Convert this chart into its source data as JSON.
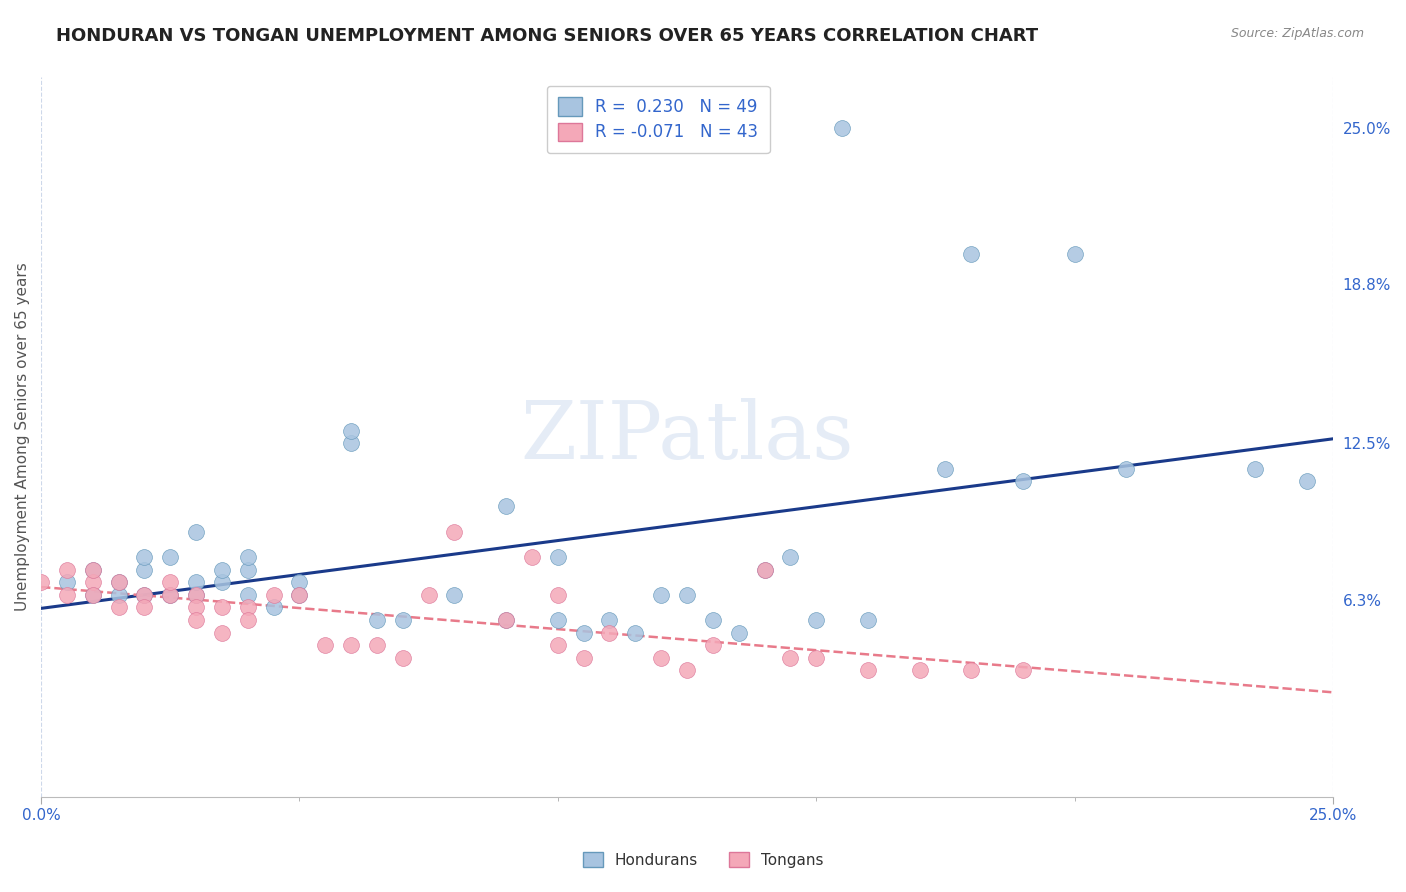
{
  "title": "HONDURAN VS TONGAN UNEMPLOYMENT AMONG SENIORS OVER 65 YEARS CORRELATION CHART",
  "source": "Source: ZipAtlas.com",
  "ylabel": "Unemployment Among Seniors over 65 years",
  "xlim": [
    0.0,
    0.25
  ],
  "ylim": [
    -0.015,
    0.27
  ],
  "ytick_right_labels": [
    "25.0%",
    "18.8%",
    "12.5%",
    "6.3%"
  ],
  "ytick_right_values": [
    0.25,
    0.188,
    0.125,
    0.063
  ],
  "honduran_color": "#a8c4e0",
  "tongan_color": "#f4a8b8",
  "honduran_edge_color": "#6699bb",
  "tongan_edge_color": "#dd7799",
  "honduran_line_color": "#1a3a8a",
  "tongan_line_color": "#e87a8a",
  "legend_honduran_label": "R =  0.230   N = 49",
  "legend_tongan_label": "R = -0.071   N = 43",
  "watermark": "ZIPatlas",
  "background_color": "#ffffff",
  "grid_color": "#c8d4e8",
  "honduran_scatter_x": [
    0.005,
    0.01,
    0.01,
    0.015,
    0.015,
    0.02,
    0.02,
    0.02,
    0.025,
    0.025,
    0.03,
    0.03,
    0.03,
    0.035,
    0.035,
    0.04,
    0.04,
    0.04,
    0.045,
    0.05,
    0.05,
    0.06,
    0.06,
    0.065,
    0.07,
    0.08,
    0.09,
    0.09,
    0.1,
    0.1,
    0.105,
    0.11,
    0.115,
    0.12,
    0.125,
    0.13,
    0.135,
    0.14,
    0.145,
    0.15,
    0.155,
    0.16,
    0.175,
    0.18,
    0.19,
    0.2,
    0.21,
    0.235,
    0.245
  ],
  "honduran_scatter_y": [
    0.07,
    0.065,
    0.075,
    0.065,
    0.07,
    0.065,
    0.075,
    0.08,
    0.065,
    0.08,
    0.065,
    0.07,
    0.09,
    0.07,
    0.075,
    0.075,
    0.08,
    0.065,
    0.06,
    0.07,
    0.065,
    0.125,
    0.13,
    0.055,
    0.055,
    0.065,
    0.055,
    0.1,
    0.08,
    0.055,
    0.05,
    0.055,
    0.05,
    0.065,
    0.065,
    0.055,
    0.05,
    0.075,
    0.08,
    0.055,
    0.25,
    0.055,
    0.115,
    0.2,
    0.11,
    0.2,
    0.115,
    0.115,
    0.11
  ],
  "tongan_scatter_x": [
    0.0,
    0.005,
    0.005,
    0.01,
    0.01,
    0.01,
    0.015,
    0.015,
    0.02,
    0.02,
    0.025,
    0.025,
    0.03,
    0.03,
    0.03,
    0.035,
    0.035,
    0.04,
    0.04,
    0.045,
    0.05,
    0.055,
    0.06,
    0.065,
    0.07,
    0.075,
    0.08,
    0.09,
    0.095,
    0.1,
    0.1,
    0.105,
    0.11,
    0.12,
    0.125,
    0.13,
    0.14,
    0.145,
    0.15,
    0.16,
    0.17,
    0.18,
    0.19
  ],
  "tongan_scatter_y": [
    0.07,
    0.075,
    0.065,
    0.07,
    0.075,
    0.065,
    0.07,
    0.06,
    0.065,
    0.06,
    0.065,
    0.07,
    0.065,
    0.06,
    0.055,
    0.06,
    0.05,
    0.06,
    0.055,
    0.065,
    0.065,
    0.045,
    0.045,
    0.045,
    0.04,
    0.065,
    0.09,
    0.055,
    0.08,
    0.065,
    0.045,
    0.04,
    0.05,
    0.04,
    0.035,
    0.045,
    0.075,
    0.04,
    0.04,
    0.035,
    0.035,
    0.035,
    0.035
  ]
}
